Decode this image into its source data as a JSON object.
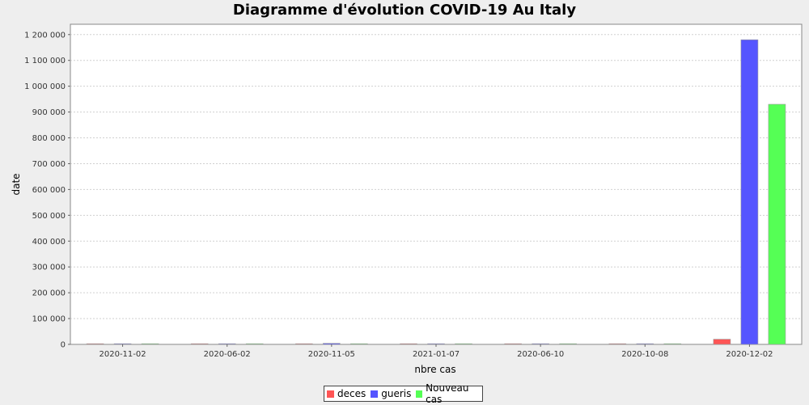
{
  "chart_data": {
    "type": "bar",
    "title": "Diagramme d'évolution COVID-19 Au Italy",
    "xlabel": "nbre cas",
    "ylabel": "date",
    "categories": [
      "2020-11-02",
      "2020-06-02",
      "2020-11-05",
      "2021-01-07",
      "2020-06-10",
      "2020-10-08",
      "2020-12-02"
    ],
    "series": [
      {
        "name": "deces",
        "color": "#ff5555",
        "values": [
          0,
          0,
          0,
          0,
          0,
          0,
          20000
        ]
      },
      {
        "name": "gueris",
        "color": "#5555ff",
        "values": [
          0,
          0,
          4000,
          0,
          0,
          0,
          1180000
        ]
      },
      {
        "name": "Nouveau cas",
        "color": "#55ff55",
        "values": [
          0,
          0,
          0,
          0,
          0,
          0,
          930000
        ]
      }
    ],
    "ylim": [
      0,
      1240000
    ],
    "yticks": [
      0,
      100000,
      200000,
      300000,
      400000,
      500000,
      600000,
      700000,
      800000,
      900000,
      1000000,
      1100000,
      1200000
    ],
    "ytick_labels": [
      "0",
      "100 000",
      "200 000",
      "300 000",
      "400 000",
      "500 000",
      "600 000",
      "700 000",
      "800 000",
      "900 000",
      "1 000 000",
      "1 100 000",
      "1 200 000"
    ],
    "grid": true,
    "legend_position": "bottom"
  }
}
